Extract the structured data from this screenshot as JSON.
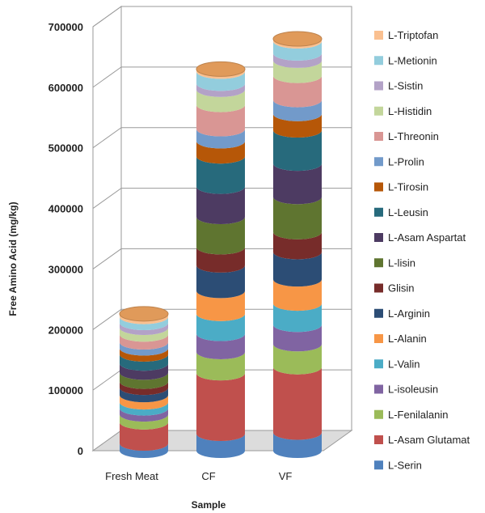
{
  "chart_data": {
    "type": "bar",
    "style": "3d-stacked-cylinder",
    "xlabel": "Sample",
    "ylabel": "Free Amino Acid (mg/kg)",
    "ylim": [
      0,
      700000
    ],
    "yticks": [
      "0",
      "100000",
      "200000",
      "300000",
      "400000",
      "500000",
      "600000",
      "700000"
    ],
    "grid": true,
    "legend_position": "right",
    "categories": [
      "Fresh Meat",
      "CF",
      "VF"
    ],
    "series": [
      {
        "name": "L-Serin",
        "color": "#4f81bd",
        "values": [
          12000,
          28000,
          30000
        ]
      },
      {
        "name": "L-Asam Glutamat",
        "color": "#c0504d",
        "values": [
          35000,
          100000,
          108000
        ]
      },
      {
        "name": "L-Fenilalanin",
        "color": "#9bbb59",
        "values": [
          13000,
          35000,
          38000
        ]
      },
      {
        "name": "L-isoleusin",
        "color": "#8064a2",
        "values": [
          10000,
          30000,
          32000
        ]
      },
      {
        "name": "L-Valin",
        "color": "#4bacc6",
        "values": [
          10000,
          33000,
          35000
        ]
      },
      {
        "name": "L-Alanin",
        "color": "#f79646",
        "values": [
          12000,
          38000,
          40000
        ]
      },
      {
        "name": "L-Arginin",
        "color": "#2c4d75",
        "values": [
          12000,
          42000,
          45000
        ]
      },
      {
        "name": "Glisin",
        "color": "#772c2a",
        "values": [
          10000,
          30000,
          33000
        ]
      },
      {
        "name": "L-lisin",
        "color": "#5f7530",
        "values": [
          15000,
          50000,
          58000
        ]
      },
      {
        "name": "L-Asam Aspartat",
        "color": "#4d3b62",
        "values": [
          15000,
          50000,
          55000
        ]
      },
      {
        "name": "L-Leusin",
        "color": "#276a7c",
        "values": [
          15000,
          50000,
          55000
        ]
      },
      {
        "name": "L-Tirosin",
        "color": "#b65708",
        "values": [
          10000,
          25000,
          27000
        ]
      },
      {
        "name": "L-Prolin",
        "color": "#729aca",
        "values": [
          10000,
          20000,
          23000
        ]
      },
      {
        "name": "L-Threonin",
        "color": "#d99694",
        "values": [
          13000,
          40000,
          40000
        ]
      },
      {
        "name": "L-Histidin",
        "color": "#c3d69b",
        "values": [
          11000,
          25000,
          25000
        ]
      },
      {
        "name": "L-Sistin",
        "color": "#b3a2c7",
        "values": [
          8000,
          10000,
          12000
        ]
      },
      {
        "name": "L-Metionin",
        "color": "#93cddd",
        "values": [
          10000,
          20000,
          20000
        ]
      },
      {
        "name": "L-Triptofan",
        "color": "#fac090",
        "values": [
          5000,
          4000,
          4000
        ]
      }
    ]
  }
}
